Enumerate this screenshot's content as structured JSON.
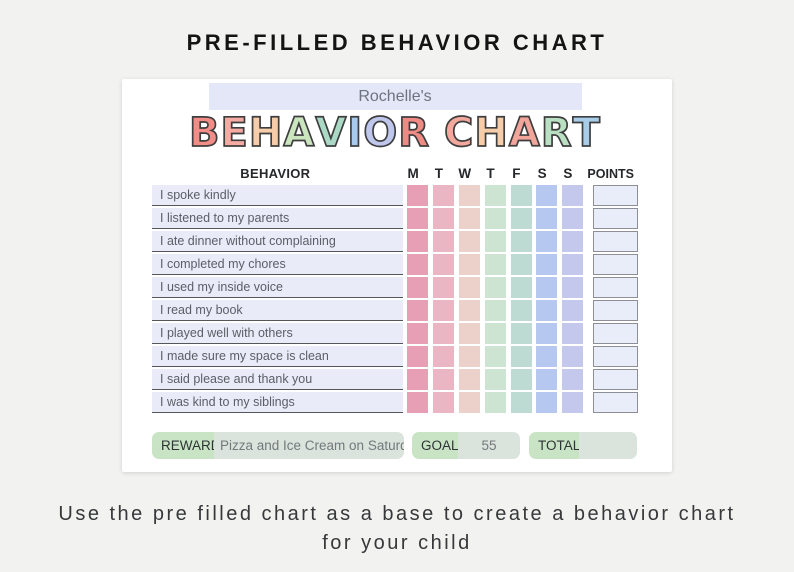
{
  "page": {
    "title": "PRE-FILLED BEHAVIOR CHART",
    "caption": {
      "line1": "Use the pre filled chart as a base to create a behavior chart",
      "line2": "for your child"
    },
    "background_color": "#F2F2F1"
  },
  "chart": {
    "name": "Rochelle's",
    "title_letters": [
      {
        "char": "B",
        "color": "#F18C87"
      },
      {
        "char": "E",
        "color": "#F3ABA3"
      },
      {
        "char": "H",
        "color": "#F6CDA8"
      },
      {
        "char": "A",
        "color": "#CBE5BF"
      },
      {
        "char": "V",
        "color": "#AADAC5"
      },
      {
        "char": "I",
        "color": "#A8CAEC"
      },
      {
        "char": "O",
        "color": "#C0C7ED"
      },
      {
        "char": "R",
        "color": "#EF8A85"
      },
      {
        "char": " ",
        "color": ""
      },
      {
        "char": "C",
        "color": "#F3A89E"
      },
      {
        "char": "H",
        "color": "#F6CDA8"
      },
      {
        "char": "A",
        "color": "#F1A59B"
      },
      {
        "char": "R",
        "color": "#BAE0C4"
      },
      {
        "char": "T",
        "color": "#A7CDE9"
      }
    ],
    "headers": {
      "behavior": "BEHAVIOR",
      "points": "POINTS"
    },
    "days": [
      "M",
      "T",
      "W",
      "T",
      "F",
      "S",
      "S"
    ],
    "day_colors": [
      "#E79FB6",
      "#EAB6C3",
      "#ECD1CB",
      "#CDE4D2",
      "#BDDBD2",
      "#B6C8F0",
      "#C5C8ED"
    ],
    "behaviors": [
      "I spoke kindly",
      "I listened to my parents",
      "I ate dinner without complaining",
      "I completed my chores",
      "I used my inside voice",
      "I read my book",
      "I played well with others",
      "I made sure my space is clean",
      "I said please and thank you",
      "I was kind to my siblings"
    ],
    "footer": {
      "reward_label": "REWARD:",
      "reward_value": "Pizza and Ice Cream on Saturday",
      "goal_label": "GOAL:",
      "goal_value": "55",
      "total_label": "TOTAL:",
      "total_value": ""
    },
    "colors": {
      "name_band_bg": "#E3E7F7",
      "name_text": "#6E7380",
      "behavior_cell_bg": "#E9ECF8",
      "behavior_cell_border": "#55565C",
      "points_box_bg": "#E9ECF9",
      "points_box_border": "#8E8E96",
      "pill_label_bg": "#C9E4C4",
      "pill_value_bg": "#DAE3DC"
    }
  }
}
